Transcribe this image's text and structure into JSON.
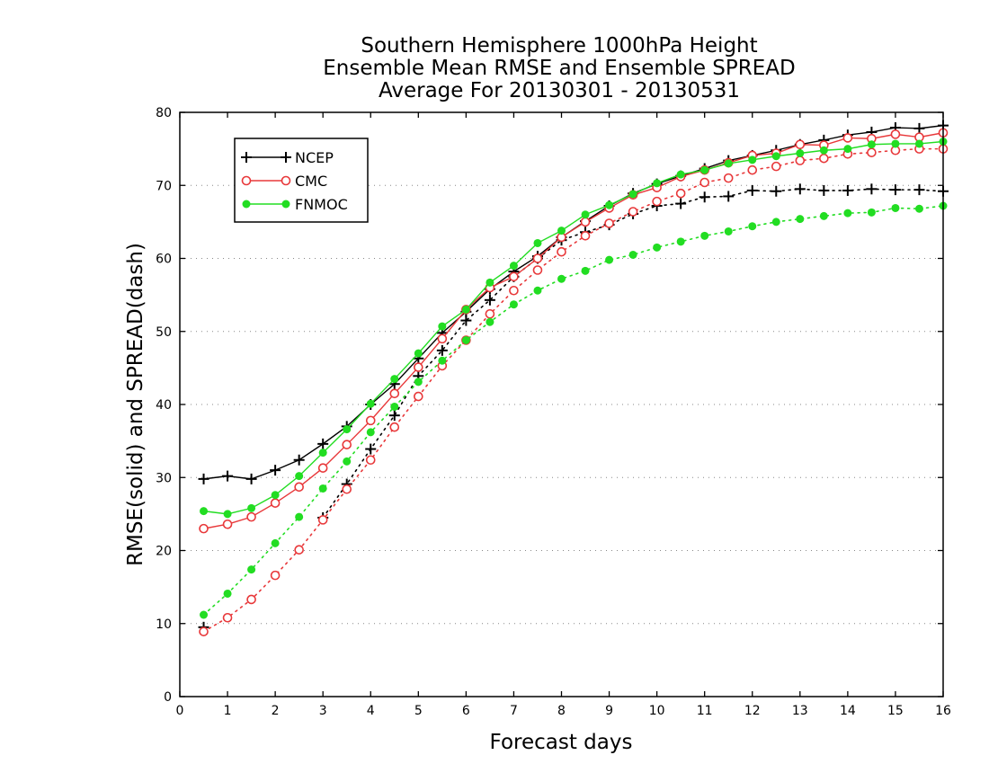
{
  "chart_data": {
    "type": "line",
    "title": "Southern Hemisphere 1000hPa Height",
    "subtitle": "Ensemble Mean RMSE and Ensemble SPREAD",
    "subtitle2": "Average For 20130301 - 20130531",
    "xlabel": "Forecast days",
    "ylabel": "RMSE(solid) and SPREAD(dash)",
    "xlim": [
      0,
      16
    ],
    "ylim": [
      0,
      80
    ],
    "xticks": [
      "0",
      "1",
      "2",
      "3",
      "4",
      "5",
      "6",
      "7",
      "8",
      "9",
      "10",
      "11",
      "12",
      "13",
      "14",
      "15",
      "16"
    ],
    "yticks": [
      "0",
      "10",
      "20",
      "30",
      "40",
      "50",
      "60",
      "70",
      "80"
    ],
    "grid": "horizontal dotted",
    "legend_position": "top-left",
    "x": [
      0.5,
      1,
      1.5,
      2,
      2.5,
      3,
      3.5,
      4,
      4.5,
      5,
      5.5,
      6,
      6.5,
      7,
      7.5,
      8,
      8.5,
      9,
      9.5,
      10,
      10.5,
      11,
      11.5,
      12,
      12.5,
      13,
      13.5,
      14,
      14.5,
      15,
      15.5,
      16
    ],
    "series": [
      {
        "name": "NCEP",
        "color": "#000000",
        "marker": "plus",
        "rmse": [
          29.8,
          30.2,
          29.8,
          31.0,
          32.4,
          34.6,
          37.0,
          40.0,
          42.8,
          46.3,
          49.8,
          52.7,
          55.8,
          58.2,
          60.3,
          62.9,
          65.1,
          67.2,
          68.9,
          70.2,
          71.3,
          72.3,
          73.4,
          74.1,
          74.8,
          75.6,
          76.2,
          76.9,
          77.3,
          77.9,
          77.8,
          78.2
        ],
        "spread": [
          9.5,
          null,
          null,
          null,
          null,
          24.5,
          29.1,
          33.9,
          38.5,
          43.9,
          47.4,
          51.5,
          54.3,
          57.5,
          60.0,
          62.5,
          63.6,
          64.6,
          66.1,
          67.2,
          67.5,
          68.4,
          68.5,
          69.3,
          69.2,
          69.5,
          69.3,
          69.3,
          69.5,
          69.4,
          69.4,
          69.2
        ]
      },
      {
        "name": "CMC",
        "color": "#e8383a",
        "marker": "open-circle",
        "rmse": [
          23.0,
          23.6,
          24.6,
          26.5,
          28.7,
          31.3,
          34.5,
          37.8,
          41.5,
          45.1,
          49.0,
          53.0,
          56.0,
          57.5,
          60.0,
          62.9,
          65.0,
          66.9,
          68.7,
          69.7,
          71.2,
          72.1,
          73.1,
          74.1,
          74.4,
          75.6,
          75.5,
          76.5,
          76.4,
          77.0,
          76.6,
          77.2
        ],
        "spread": [
          8.9,
          10.8,
          13.3,
          16.6,
          20.1,
          24.2,
          28.4,
          32.4,
          36.9,
          41.1,
          45.3,
          48.8,
          52.4,
          55.6,
          58.4,
          60.9,
          63.1,
          64.8,
          66.4,
          67.8,
          68.9,
          70.4,
          71.0,
          72.1,
          72.6,
          73.4,
          73.7,
          74.3,
          74.5,
          74.8,
          75.0,
          75.0
        ]
      },
      {
        "name": "FNMOC",
        "color": "#22dd22",
        "marker": "filled-circle",
        "rmse": [
          25.4,
          25.0,
          25.8,
          27.6,
          30.2,
          33.4,
          36.6,
          40.1,
          43.5,
          47.0,
          50.7,
          53.0,
          56.7,
          59.0,
          62.1,
          63.8,
          66.0,
          67.3,
          68.8,
          70.3,
          71.5,
          72.1,
          73.0,
          73.5,
          74.0,
          74.4,
          74.8,
          75.0,
          75.6,
          75.7,
          75.7,
          76.0
        ],
        "spread": [
          11.2,
          14.1,
          17.4,
          21.0,
          24.6,
          28.5,
          32.2,
          36.2,
          39.7,
          43.1,
          46.0,
          48.8,
          51.3,
          53.7,
          55.6,
          57.2,
          58.3,
          59.8,
          60.5,
          61.5,
          62.3,
          63.1,
          63.7,
          64.4,
          65.0,
          65.4,
          65.8,
          66.2,
          66.3,
          66.9,
          66.8,
          67.2
        ]
      }
    ]
  }
}
